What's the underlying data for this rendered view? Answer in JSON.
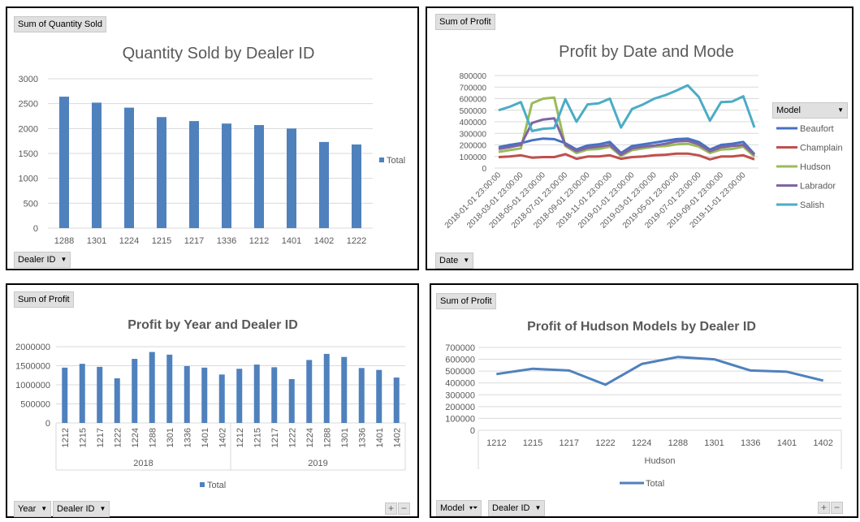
{
  "charts": [
    {
      "field_label": "Sum of Quantity Sold",
      "filter_buttons": [
        "Dealer ID"
      ],
      "legend": [
        "Total"
      ]
    },
    {
      "field_label": "Sum of Profit",
      "filter_buttons": [
        "Date"
      ],
      "legend_header": "Model"
    },
    {
      "field_label": "Sum of Profit",
      "filter_buttons": [
        "Year",
        "Dealer ID"
      ],
      "legend": [
        "Total"
      ],
      "zoom": [
        "+",
        "−"
      ]
    },
    {
      "field_label": "Sum of Profit",
      "filter_buttons": [
        "Model",
        "Dealer ID"
      ],
      "legend": [
        "Total"
      ],
      "zoom": [
        "+",
        "−"
      ]
    }
  ],
  "colors": {
    "bar": "#4f81bd",
    "Beaufort": "#4472c4",
    "Champlain": "#c0504d",
    "Hudson": "#9bbb59",
    "Labrador": "#8064a2",
    "Salish": "#4bacc6",
    "line": "#4f81bd"
  },
  "chart_data": [
    {
      "type": "bar",
      "title": "Quantity Sold by Dealer ID",
      "categories": [
        "1288",
        "1301",
        "1224",
        "1215",
        "1217",
        "1336",
        "1212",
        "1401",
        "1402",
        "1222"
      ],
      "series": [
        {
          "name": "Total",
          "values": [
            2640,
            2520,
            2420,
            2230,
            2150,
            2100,
            2070,
            2000,
            1730,
            1680
          ]
        }
      ],
      "ylim": [
        0,
        3000
      ],
      "yticks": [
        0,
        500,
        1000,
        1500,
        2000,
        2500,
        3000
      ],
      "grid": true,
      "legend": "right"
    },
    {
      "type": "line",
      "title": "Profit by Date and Mode",
      "x": [
        "2018-01-01 23:00:00",
        "2018-02-01 23:00:00",
        "2018-03-01 23:00:00",
        "2018-04-01 23:00:00",
        "2018-05-01 23:00:00",
        "2018-06-01 23:00:00",
        "2018-07-01 23:00:00",
        "2018-08-01 23:00:00",
        "2018-09-01 23:00:00",
        "2018-10-01 23:00:00",
        "2018-11-01 23:00:00",
        "2018-12-01 23:00:00",
        "2019-01-01 23:00:00",
        "2019-02-01 23:00:00",
        "2019-03-01 23:00:00",
        "2019-04-01 23:00:00",
        "2019-05-01 23:00:00",
        "2019-06-01 23:00:00",
        "2019-07-01 23:00:00",
        "2019-08-01 23:00:00",
        "2019-09-01 23:00:00",
        "2019-10-01 23:00:00",
        "2019-11-01 23:00:00",
        "2019-12-01 23:00:00"
      ],
      "tick_labels": [
        "2018-01-01 23:00:00",
        "2018-03-01 23:00:00",
        "2018-05-01 23:00:00",
        "2018-07-01 23:00:00",
        "2018-09-01 23:00:00",
        "2018-11-01 23:00:00",
        "2019-01-01 23:00:00",
        "2019-03-01 23:00:00",
        "2019-05-01 23:00:00",
        "2019-07-01 23:00:00",
        "2019-09-01 23:00:00",
        "2019-11-01 23:00:00"
      ],
      "series": [
        {
          "name": "Beaufort",
          "values": [
            180000,
            200000,
            215000,
            240000,
            255000,
            250000,
            215000,
            160000,
            195000,
            205000,
            225000,
            130000,
            190000,
            205000,
            220000,
            235000,
            250000,
            255000,
            225000,
            160000,
            200000,
            210000,
            225000,
            120000
          ]
        },
        {
          "name": "Champlain",
          "values": [
            95000,
            100000,
            110000,
            90000,
            95000,
            95000,
            120000,
            80000,
            100000,
            100000,
            110000,
            80000,
            95000,
            100000,
            110000,
            115000,
            125000,
            125000,
            110000,
            75000,
            100000,
            100000,
            110000,
            75000
          ]
        },
        {
          "name": "Hudson",
          "values": [
            140000,
            155000,
            170000,
            560000,
            600000,
            610000,
            190000,
            130000,
            160000,
            165000,
            185000,
            105000,
            155000,
            170000,
            185000,
            190000,
            205000,
            210000,
            185000,
            130000,
            160000,
            165000,
            185000,
            100000
          ]
        },
        {
          "name": "Labrador",
          "values": [
            165000,
            180000,
            200000,
            390000,
            420000,
            430000,
            200000,
            145000,
            175000,
            185000,
            200000,
            115000,
            170000,
            185000,
            195000,
            210000,
            230000,
            235000,
            205000,
            145000,
            180000,
            190000,
            200000,
            115000
          ]
        },
        {
          "name": "Salish",
          "values": [
            500000,
            530000,
            570000,
            320000,
            340000,
            345000,
            595000,
            400000,
            550000,
            560000,
            600000,
            350000,
            510000,
            550000,
            600000,
            630000,
            670000,
            715000,
            615000,
            410000,
            570000,
            575000,
            620000,
            350000
          ]
        }
      ],
      "ylim": [
        0,
        800000
      ],
      "yticks": [
        0,
        100000,
        200000,
        300000,
        400000,
        500000,
        600000,
        700000,
        800000
      ],
      "grid": true,
      "legend": "right"
    },
    {
      "type": "bar",
      "title": "Profit by Year and Dealer ID",
      "groups": [
        {
          "label": "2018",
          "categories": [
            "1212",
            "1215",
            "1217",
            "1222",
            "1224",
            "1288",
            "1301",
            "1336",
            "1401",
            "1402"
          ],
          "values": [
            1450000,
            1550000,
            1470000,
            1170000,
            1680000,
            1860000,
            1790000,
            1490000,
            1450000,
            1270000
          ]
        },
        {
          "label": "2019",
          "categories": [
            "1212",
            "1215",
            "1217",
            "1222",
            "1224",
            "1288",
            "1301",
            "1336",
            "1401",
            "1402"
          ],
          "values": [
            1420000,
            1530000,
            1460000,
            1150000,
            1650000,
            1810000,
            1730000,
            1440000,
            1390000,
            1190000
          ]
        }
      ],
      "series": [
        {
          "name": "Total"
        }
      ],
      "ylim": [
        0,
        2000000
      ],
      "yticks": [
        0,
        500000,
        1000000,
        1500000,
        2000000
      ],
      "grid": true,
      "legend": "bottom"
    },
    {
      "type": "line",
      "title": "Profit of Hudson Models by Dealer ID",
      "categories": [
        "1212",
        "1215",
        "1217",
        "1222",
        "1224",
        "1288",
        "1301",
        "1336",
        "1401",
        "1402"
      ],
      "group_label": "Hudson",
      "series": [
        {
          "name": "Total",
          "values": [
            475000,
            520000,
            505000,
            385000,
            560000,
            620000,
            600000,
            505000,
            495000,
            420000
          ]
        }
      ],
      "ylim": [
        0,
        700000
      ],
      "yticks": [
        0,
        100000,
        200000,
        300000,
        400000,
        500000,
        600000,
        700000
      ],
      "grid": true,
      "legend": "bottom"
    }
  ]
}
